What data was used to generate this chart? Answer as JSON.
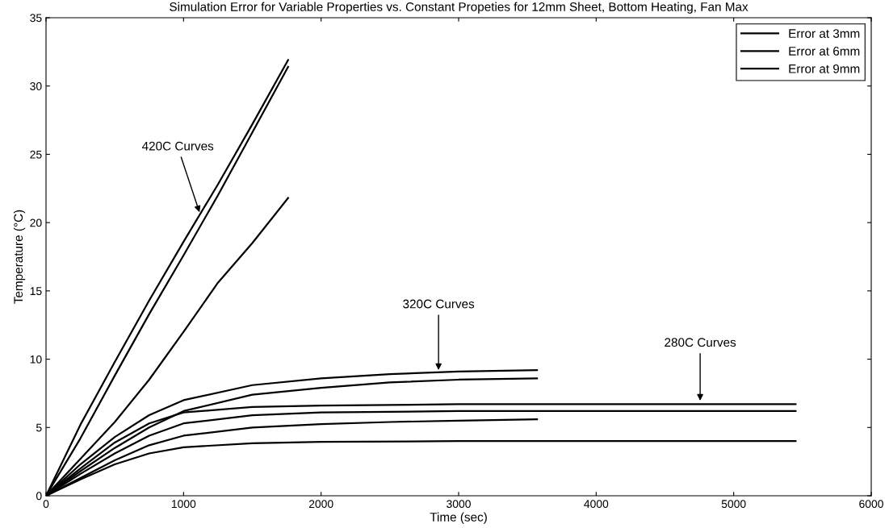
{
  "chart_data": {
    "type": "line",
    "title": "Simulation Error for Variable Properties vs. Constant Propeties for 12mm Sheet, Bottom Heating, Fan Max",
    "xlabel": "Time (sec)",
    "ylabel": "Temperature (°C)",
    "xlim": [
      0,
      6000
    ],
    "xticks": [
      0,
      1000,
      2000,
      3000,
      4000,
      5000,
      6000
    ],
    "ylim": [
      0,
      35
    ],
    "yticks": [
      0,
      5,
      10,
      15,
      20,
      25,
      30,
      35
    ],
    "grid": false,
    "legend": "top right",
    "marker": "none",
    "line_style": "solid",
    "series": [
      {
        "name": "Error at 3mm",
        "color": "#000000",
        "x": [
          0,
          250,
          500,
          750,
          1000,
          1500,
          2000,
          3000,
          5450
        ],
        "values": [
          0,
          1.2,
          2.3,
          3.1,
          3.55,
          3.85,
          3.95,
          4.0,
          4.0
        ]
      },
      {
        "name": "Error at 6mm",
        "color": "#000000",
        "x": [
          0,
          250,
          500,
          750,
          1000,
          1500,
          2000,
          3000,
          5450
        ],
        "values": [
          0,
          2.0,
          3.9,
          5.3,
          6.1,
          6.5,
          6.6,
          6.7,
          6.7
        ]
      },
      {
        "name": "Error at 9mm",
        "color": "#000000",
        "x": [
          0,
          250,
          500,
          750,
          1000,
          1500,
          2000,
          3000,
          5450
        ],
        "values": [
          0,
          1.6,
          3.1,
          4.4,
          5.3,
          5.9,
          6.1,
          6.2,
          6.2
        ]
      },
      {
        "color": "#000000",
        "x": [
          0,
          250,
          500,
          750,
          1000,
          1500,
          2000,
          2500,
          3000,
          3570
        ],
        "values": [
          0,
          2.3,
          4.3,
          5.9,
          7.0,
          8.1,
          8.6,
          8.9,
          9.1,
          9.2
        ]
      },
      {
        "color": "#000000",
        "x": [
          0,
          250,
          500,
          750,
          1000,
          1500,
          2000,
          2500,
          3000,
          3570
        ],
        "values": [
          0,
          1.8,
          3.5,
          5.0,
          6.2,
          7.4,
          7.9,
          8.3,
          8.5,
          8.6
        ]
      },
      {
        "color": "#000000",
        "x": [
          0,
          250,
          500,
          750,
          1000,
          1500,
          2000,
          2500,
          3000,
          3570
        ],
        "values": [
          0,
          1.3,
          2.6,
          3.7,
          4.4,
          5.0,
          5.25,
          5.4,
          5.5,
          5.6
        ]
      },
      {
        "color": "#000000",
        "x": [
          0,
          250,
          500,
          750,
          1000,
          1250,
          1500,
          1760
        ],
        "values": [
          0,
          5.2,
          9.8,
          14.3,
          18.6,
          22.8,
          27.2,
          31.9
        ]
      },
      {
        "color": "#000000",
        "x": [
          0,
          250,
          500,
          750,
          1000,
          1250,
          1500,
          1760
        ],
        "values": [
          0,
          4.2,
          8.8,
          13.3,
          17.6,
          22.0,
          26.6,
          31.4
        ]
      },
      {
        "color": "#000000",
        "x": [
          0,
          250,
          500,
          750,
          1000,
          1250,
          1500,
          1760
        ],
        "values": [
          0,
          2.7,
          5.4,
          8.5,
          12.0,
          15.6,
          18.5,
          21.8
        ]
      }
    ],
    "annotations": [
      {
        "text": "420C Curves",
        "x": 1121,
        "y": 20.6
      },
      {
        "text": "320C Curves",
        "x": 2854,
        "y": 9.04
      },
      {
        "text": "280C Curves",
        "x": 4756,
        "y": 6.8
      }
    ]
  }
}
